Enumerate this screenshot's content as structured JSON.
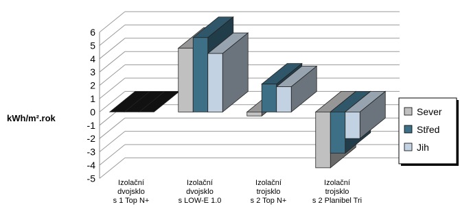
{
  "chart_data": {
    "type": "bar",
    "style": "3d-clustered-column",
    "ylabel": "kWh/m².rok",
    "ylim": [
      -5,
      6
    ],
    "yticks": [
      6,
      5,
      4,
      3,
      2,
      1,
      0,
      -1,
      -2,
      -3,
      -4,
      -5
    ],
    "grid": true,
    "legend_position": "right",
    "categories": [
      [
        "Izolační",
        "dvojsklo",
        "s 1 Top N+"
      ],
      [
        "Izolační",
        "dvojsklo",
        "s LOW-E 1.0"
      ],
      [
        "Izolační",
        "trojsklo",
        "s 2 Top N+"
      ],
      [
        "Izolační",
        "trojsklo",
        "s 2 Planibel Tri"
      ]
    ],
    "series": [
      {
        "name": "Sever",
        "color": "#c0c0c0",
        "values": [
          0.0,
          4.8,
          -0.3,
          -4.2
        ]
      },
      {
        "name": "Střed",
        "color": "#3d6f86",
        "values": [
          0.0,
          5.6,
          2.1,
          -3.1
        ]
      },
      {
        "name": "Jih",
        "color": "#c2d2e2",
        "values": [
          0.0,
          4.4,
          1.9,
          -2.0
        ]
      }
    ]
  }
}
